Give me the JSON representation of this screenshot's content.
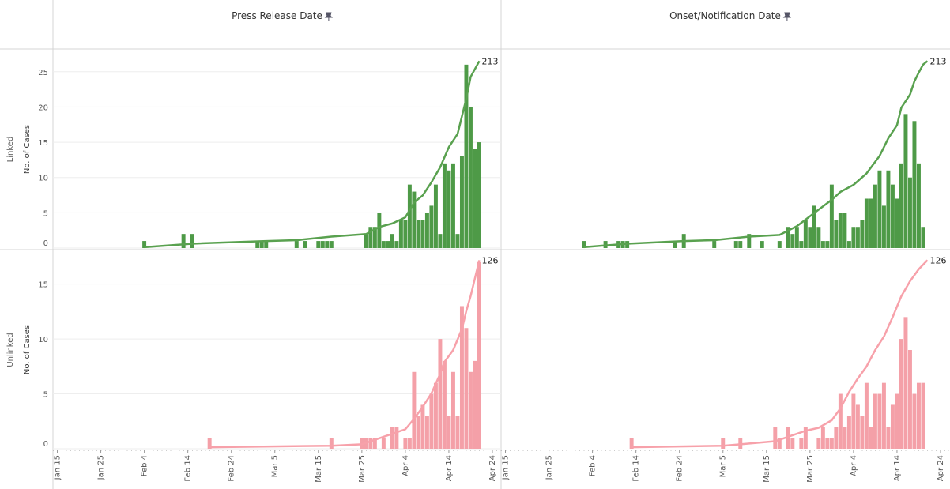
{
  "chart_data": [
    {
      "type": "bar",
      "title": "Press Release Date",
      "row_label": "Linked",
      "ylabel": "No. of Cases",
      "xlim": [
        "Jan 14",
        "Apr 26"
      ],
      "ylim": [
        0,
        28
      ],
      "yticks": [
        0,
        5,
        10,
        15,
        20,
        25
      ],
      "y2lim": [
        0,
        225
      ],
      "series": [
        {
          "type": "bar",
          "color": "#4e9a47",
          "x": [
            "Feb 4",
            "Feb 13",
            "Feb 15",
            "Mar 1",
            "Mar 2",
            "Mar 3",
            "Mar 10",
            "Mar 12",
            "Mar 15",
            "Mar 16",
            "Mar 17",
            "Mar 18",
            "Mar 26",
            "Mar 27",
            "Mar 28",
            "Mar 29",
            "Mar 30",
            "Mar 31",
            "Apr 1",
            "Apr 2",
            "Apr 3",
            "Apr 4",
            "Apr 5",
            "Apr 6",
            "Apr 7",
            "Apr 8",
            "Apr 9",
            "Apr 10",
            "Apr 11",
            "Apr 12",
            "Apr 13",
            "Apr 14",
            "Apr 15",
            "Apr 16",
            "Apr 17",
            "Apr 18",
            "Apr 19",
            "Apr 20",
            "Apr 21"
          ],
          "values": [
            1,
            2,
            2,
            1,
            1,
            1,
            1,
            1,
            1,
            1,
            1,
            1,
            2,
            3,
            3,
            5,
            1,
            1,
            2,
            1,
            4,
            4,
            9,
            8,
            4,
            4,
            5,
            6,
            9,
            2,
            12,
            11,
            12,
            2,
            13,
            26,
            20,
            14,
            15
          ]
        },
        {
          "type": "line",
          "axis": "y2",
          "color": "#59a14f",
          "x": [
            "Feb 4",
            "Feb 15",
            "Mar 3",
            "Mar 10",
            "Mar 18",
            "Mar 26",
            "Mar 29",
            "Apr 1",
            "Apr 4",
            "Apr 6",
            "Apr 8",
            "Apr 10",
            "Apr 12",
            "Apr 14",
            "Apr 16",
            "Apr 17",
            "Apr 18",
            "Apr 19",
            "Apr 21"
          ],
          "values": [
            1,
            5,
            8,
            9,
            13,
            16,
            24,
            28,
            35,
            52,
            60,
            75,
            92,
            115,
            130,
            150,
            170,
            195,
            213
          ]
        }
      ]
    },
    {
      "type": "bar",
      "title": "Onset/Notification Date",
      "xlim": [
        "Jan 14",
        "Apr 26"
      ],
      "ylim": [
        0,
        28
      ],
      "y2lim": [
        0,
        225
      ],
      "series": [
        {
          "type": "bar",
          "color": "#4e9a47",
          "x": [
            "Feb 2",
            "Feb 7",
            "Feb 10",
            "Feb 11",
            "Feb 12",
            "Feb 23",
            "Feb 25",
            "Mar 3",
            "Mar 8",
            "Mar 9",
            "Mar 11",
            "Mar 14",
            "Mar 18",
            "Mar 20",
            "Mar 21",
            "Mar 22",
            "Mar 23",
            "Mar 24",
            "Mar 25",
            "Mar 26",
            "Mar 27",
            "Mar 28",
            "Mar 29",
            "Mar 30",
            "Mar 31",
            "Apr 1",
            "Apr 2",
            "Apr 3",
            "Apr 4",
            "Apr 5",
            "Apr 6",
            "Apr 7",
            "Apr 8",
            "Apr 9",
            "Apr 10",
            "Apr 11",
            "Apr 12",
            "Apr 13",
            "Apr 14",
            "Apr 15",
            "Apr 16",
            "Apr 17",
            "Apr 18",
            "Apr 19",
            "Apr 20"
          ],
          "values": [
            1,
            1,
            1,
            1,
            1,
            1,
            2,
            1,
            1,
            1,
            2,
            1,
            1,
            3,
            2,
            3,
            1,
            4,
            3,
            6,
            3,
            1,
            1,
            9,
            4,
            5,
            5,
            1,
            3,
            3,
            4,
            7,
            7,
            9,
            11,
            6,
            11,
            9,
            7,
            12,
            19,
            10,
            18,
            12,
            3
          ]
        },
        {
          "type": "line",
          "axis": "y2",
          "color": "#59a14f",
          "x": [
            "Feb 2",
            "Feb 12",
            "Feb 25",
            "Mar 3",
            "Mar 11",
            "Mar 18",
            "Mar 22",
            "Mar 26",
            "Mar 30",
            "Apr 1",
            "Apr 4",
            "Apr 7",
            "Apr 10",
            "Apr 12",
            "Apr 14",
            "Apr 15",
            "Apr 17",
            "Apr 18",
            "Apr 19",
            "Apr 20",
            "Apr 21"
          ],
          "values": [
            1,
            5,
            8,
            9,
            13,
            15,
            25,
            40,
            55,
            64,
            72,
            85,
            105,
            125,
            140,
            160,
            175,
            190,
            200,
            209,
            213
          ]
        }
      ]
    },
    {
      "type": "bar",
      "row_label": "Unlinked",
      "ylabel": "No. of Cases",
      "xlim": [
        "Jan 14",
        "Apr 26"
      ],
      "ylim": [
        0,
        18
      ],
      "yticks": [
        0,
        5,
        10,
        15
      ],
      "y2lim": [
        0,
        132
      ],
      "xticks": [
        "Jan 15",
        "Jan 25",
        "Feb 4",
        "Feb 14",
        "Feb 24",
        "Mar 5",
        "Mar 15",
        "Mar 25",
        "Apr 4",
        "Apr 14",
        "Apr 24"
      ],
      "series": [
        {
          "type": "bar",
          "color": "#f4a0a8",
          "x": [
            "Feb 19",
            "Mar 18",
            "Mar 25",
            "Mar 26",
            "Mar 27",
            "Mar 28",
            "Mar 30",
            "Apr 1",
            "Apr 2",
            "Apr 4",
            "Apr 5",
            "Apr 6",
            "Apr 7",
            "Apr 8",
            "Apr 9",
            "Apr 10",
            "Apr 11",
            "Apr 12",
            "Apr 13",
            "Apr 14",
            "Apr 15",
            "Apr 16",
            "Apr 17",
            "Apr 18",
            "Apr 19",
            "Apr 20",
            "Apr 21"
          ],
          "values": [
            1,
            1,
            1,
            1,
            1,
            1,
            1,
            2,
            2,
            1,
            1,
            7,
            3,
            4,
            3,
            5,
            6,
            10,
            8,
            3,
            7,
            3,
            13,
            11,
            7,
            8,
            17
          ]
        },
        {
          "type": "line",
          "axis": "y2",
          "color": "#f7a1aa",
          "x": [
            "Feb 19",
            "Mar 18",
            "Mar 25",
            "Mar 28",
            "Apr 2",
            "Apr 4",
            "Apr 6",
            "Apr 8",
            "Apr 10",
            "Apr 12",
            "Apr 13",
            "Apr 15",
            "Apr 17",
            "Apr 18",
            "Apr 19",
            "Apr 21"
          ],
          "values": [
            1,
            2,
            3,
            6,
            11,
            13,
            20,
            28,
            37,
            50,
            58,
            66,
            80,
            92,
            102,
            126
          ]
        }
      ]
    },
    {
      "type": "bar",
      "xlim": [
        "Jan 14",
        "Apr 26"
      ],
      "ylim": [
        0,
        18
      ],
      "y2lim": [
        0,
        132
      ],
      "xticks": [
        "Jan 15",
        "Jan 25",
        "Feb 4",
        "Feb 14",
        "Feb 24",
        "Mar 5",
        "Mar 15",
        "Mar 25",
        "Apr 4",
        "Apr 14",
        "Apr 24"
      ],
      "series": [
        {
          "type": "bar",
          "color": "#f4a0a8",
          "x": [
            "Feb 13",
            "Mar 5",
            "Mar 9",
            "Mar 17",
            "Mar 18",
            "Mar 20",
            "Mar 21",
            "Mar 23",
            "Mar 24",
            "Mar 27",
            "Mar 28",
            "Mar 29",
            "Mar 30",
            "Mar 31",
            "Apr 1",
            "Apr 2",
            "Apr 3",
            "Apr 4",
            "Apr 5",
            "Apr 6",
            "Apr 7",
            "Apr 8",
            "Apr 9",
            "Apr 10",
            "Apr 11",
            "Apr 12",
            "Apr 13",
            "Apr 14",
            "Apr 15",
            "Apr 16",
            "Apr 17",
            "Apr 18",
            "Apr 19",
            "Apr 20"
          ],
          "values": [
            1,
            1,
            1,
            2,
            1,
            2,
            1,
            1,
            2,
            1,
            2,
            1,
            1,
            2,
            5,
            2,
            3,
            5,
            4,
            3,
            6,
            2,
            5,
            5,
            6,
            2,
            4,
            5,
            10,
            12,
            9,
            5,
            6,
            6
          ]
        },
        {
          "type": "line",
          "axis": "y2",
          "color": "#f7a1aa",
          "x": [
            "Feb 13",
            "Mar 5",
            "Mar 9",
            "Mar 17",
            "Mar 21",
            "Mar 24",
            "Mar 27",
            "Mar 30",
            "Apr 1",
            "Apr 3",
            "Apr 5",
            "Apr 7",
            "Apr 9",
            "Apr 11",
            "Apr 13",
            "Apr 15",
            "Apr 17",
            "Apr 19",
            "Apr 21"
          ],
          "values": [
            1,
            2,
            3,
            5,
            9,
            12,
            14,
            19,
            27,
            38,
            47,
            55,
            66,
            75,
            88,
            102,
            112,
            120,
            126
          ]
        }
      ]
    }
  ]
}
